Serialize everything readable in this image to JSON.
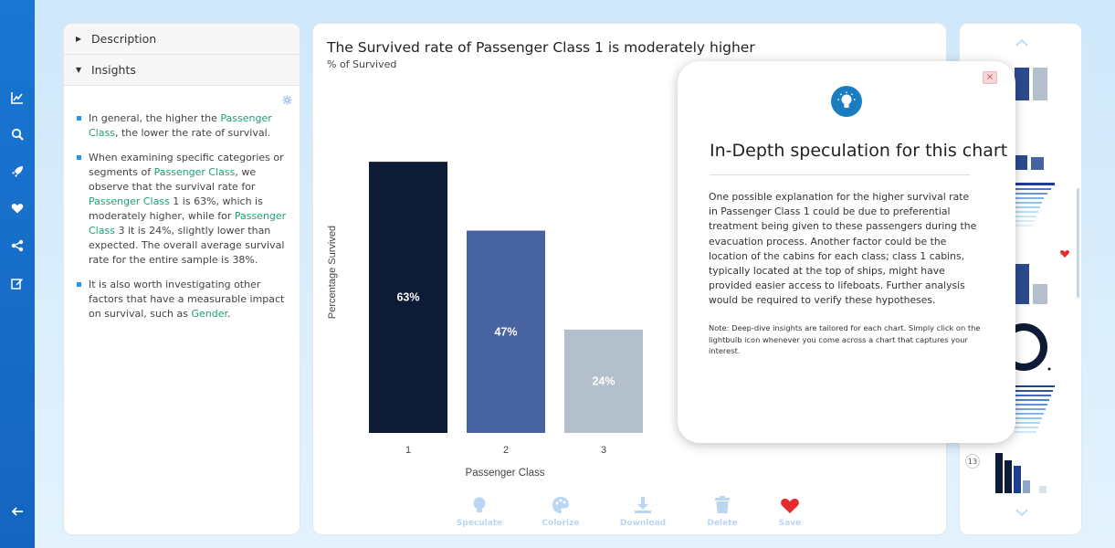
{
  "left_panel": {
    "accordions": [
      {
        "label": "Description",
        "expanded": false
      },
      {
        "label": "Insights",
        "expanded": true
      }
    ],
    "insights": [
      [
        {
          "t": "In general, the higher the "
        },
        {
          "t": "Passenger Class",
          "hl": true
        },
        {
          "t": ", the lower the rate of survival."
        }
      ],
      [
        {
          "t": "When examining specific categories or segments of "
        },
        {
          "t": "Passenger Class",
          "hl": true
        },
        {
          "t": ", we observe that the survival rate for "
        },
        {
          "t": "Passenger Class",
          "hl": true
        },
        {
          "t": " 1 is 63%, which is moderately higher, while for "
        },
        {
          "t": "Passenger Class",
          "hl": true
        },
        {
          "t": " 3 it is 24%, slightly lower than expected. The overall average survival rate for the entire sample is 38%."
        }
      ],
      [
        {
          "t": "It is also worth investigating other factors that have a measurable impact on survival, such as "
        },
        {
          "t": "Gender",
          "hl": true
        },
        {
          "t": "."
        }
      ]
    ]
  },
  "main": {
    "title": "The Survived rate of Passenger Class 1 is moderately higher",
    "subtitle": "% of Survived",
    "toolbar": [
      {
        "label": "Speculate",
        "icon": "lightbulb-icon"
      },
      {
        "label": "Colorize",
        "icon": "palette-icon"
      },
      {
        "label": "Download",
        "icon": "download-icon"
      },
      {
        "label": "Delete",
        "icon": "trash-icon"
      },
      {
        "label": "Save",
        "icon": "heart-icon"
      }
    ]
  },
  "chart_data": {
    "type": "bar",
    "categories": [
      "1",
      "2",
      "3"
    ],
    "values": [
      63,
      47,
      24
    ],
    "data_labels": [
      "63%",
      "47%",
      "24%"
    ],
    "colors": [
      "#0d1b36",
      "#4763a0",
      "#b3bfca"
    ],
    "xlabel": "Passenger Class",
    "ylabel": "Percentage Survived",
    "ylim": [
      0,
      71.3
    ],
    "grid": false,
    "legend": "none"
  },
  "modal": {
    "title": "In-Depth speculation for this chart",
    "body": "One possible explanation for the higher survival rate in Passenger Class 1 could be due to preferential treatment being given to these passengers during the evacuation process. Another factor could be the location of the cabins for each class; class 1 cabins, typically located at the top of ships, might have provided easier access to lifeboats. Further analysis would be required to verify these hypotheses.",
    "note": "Note: Deep-dive insights are tailored for each chart. Simply click on the lightbulb icon whenever you come across a chart that captures your interest.",
    "close_label": "×"
  },
  "right_panel": {
    "page_number": "13"
  },
  "colors": {
    "accent": "#1976d2",
    "highlight": "#19a37a",
    "heart": "#e52b2b",
    "tool_inactive": "#b9d6f2"
  }
}
